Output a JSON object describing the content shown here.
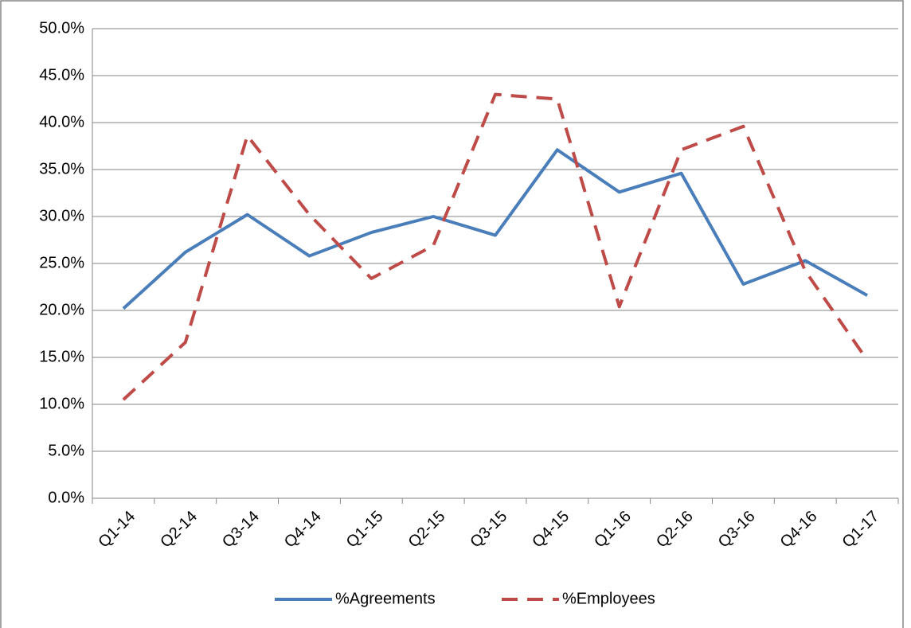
{
  "chart_data": {
    "type": "line",
    "categories": [
      "Q1-14",
      "Q2-14",
      "Q3-14",
      "Q4-14",
      "Q1-15",
      "Q2-15",
      "Q3-15",
      "Q4-15",
      "Q1-16",
      "Q2-16",
      "Q3-16",
      "Q4-16",
      "Q1-17"
    ],
    "series": [
      {
        "name": "%Agreements",
        "color": "#4a7ebb",
        "dash": false,
        "values": [
          20.2,
          26.2,
          30.2,
          25.8,
          28.3,
          30.0,
          28.0,
          37.1,
          32.6,
          34.6,
          22.8,
          25.3,
          21.6
        ]
      },
      {
        "name": "%Employees",
        "color": "#be4b48",
        "dash": true,
        "values": [
          10.5,
          16.6,
          38.6,
          30.2,
          23.4,
          26.9,
          43.0,
          42.5,
          20.4,
          37.1,
          39.6,
          24.2,
          14.7
        ]
      }
    ],
    "ylim": [
      0,
      50
    ],
    "yticks": [
      {
        "value": 0,
        "label": "0.0%"
      },
      {
        "value": 5,
        "label": "5.0%"
      },
      {
        "value": 10,
        "label": "10.0%"
      },
      {
        "value": 15,
        "label": "15.0%"
      },
      {
        "value": 20,
        "label": "20.0%"
      },
      {
        "value": 25,
        "label": "25.0%"
      },
      {
        "value": 30,
        "label": "30.0%"
      },
      {
        "value": 35,
        "label": "35.0%"
      },
      {
        "value": 40,
        "label": "40.0%"
      },
      {
        "value": 45,
        "label": "45.0%"
      },
      {
        "value": 50,
        "label": "50.0%"
      }
    ],
    "grid": true,
    "legend": "bottom"
  }
}
